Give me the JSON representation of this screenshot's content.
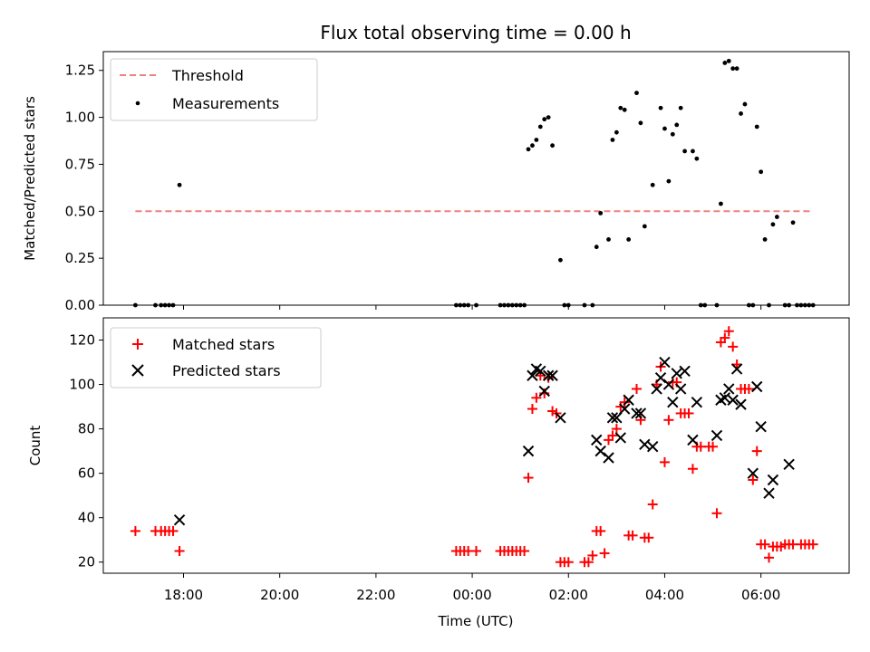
{
  "chart_data": [
    {
      "type": "scatter",
      "title": "Flux total observing time = 0.00 h",
      "ylabel": "Matched/Predicted stars",
      "xlabel": "",
      "ylim": [
        0,
        1.35
      ],
      "yticks": [
        0.0,
        0.25,
        0.5,
        0.75,
        1.0,
        1.25
      ],
      "ytick_labels": [
        "0.00",
        "0.25",
        "0.50",
        "0.75",
        "1.00",
        "1.25"
      ],
      "threshold": {
        "name": "Threshold",
        "value": 0.5,
        "x_range": [
          "17:00",
          "07:05"
        ],
        "color": "#f08080"
      },
      "legend": {
        "position": "upper left",
        "entries": [
          "Threshold",
          "Measurements"
        ]
      },
      "series": [
        {
          "name": "Measurements",
          "marker": "dot",
          "color": "#000000",
          "points": [
            [
              "17:00",
              0
            ],
            [
              "17:25",
              0
            ],
            [
              "17:32",
              0
            ],
            [
              "17:37",
              0
            ],
            [
              "17:42",
              0
            ],
            [
              "17:47",
              0
            ],
            [
              "17:55",
              0.64
            ],
            [
              "23:40",
              0
            ],
            [
              "23:45",
              0
            ],
            [
              "23:50",
              0
            ],
            [
              "23:55",
              0
            ],
            [
              "00:05",
              0
            ],
            [
              "00:35",
              0
            ],
            [
              "00:40",
              0
            ],
            [
              "00:45",
              0
            ],
            [
              "00:50",
              0
            ],
            [
              "00:55",
              0
            ],
            [
              "01:00",
              0
            ],
            [
              "01:05",
              0
            ],
            [
              "01:10",
              0.83
            ],
            [
              "01:15",
              0.85
            ],
            [
              "01:20",
              0.88
            ],
            [
              "01:25",
              0.95
            ],
            [
              "01:30",
              0.99
            ],
            [
              "01:35",
              1.0
            ],
            [
              "01:40",
              0.85
            ],
            [
              "01:50",
              0.24
            ],
            [
              "01:55",
              0
            ],
            [
              "02:00",
              0
            ],
            [
              "02:20",
              0
            ],
            [
              "02:30",
              0
            ],
            [
              "02:35",
              0.31
            ],
            [
              "02:40",
              0.49
            ],
            [
              "02:50",
              0.35
            ],
            [
              "02:55",
              0.88
            ],
            [
              "03:00",
              0.92
            ],
            [
              "03:05",
              1.05
            ],
            [
              "03:10",
              1.04
            ],
            [
              "03:15",
              0.35
            ],
            [
              "03:25",
              1.13
            ],
            [
              "03:30",
              0.97
            ],
            [
              "03:35",
              0.42
            ],
            [
              "03:45",
              0.64
            ],
            [
              "03:55",
              1.05
            ],
            [
              "04:00",
              0.94
            ],
            [
              "04:05",
              0.66
            ],
            [
              "04:10",
              0.91
            ],
            [
              "04:15",
              0.96
            ],
            [
              "04:20",
              1.05
            ],
            [
              "04:25",
              0.82
            ],
            [
              "04:35",
              0.82
            ],
            [
              "04:40",
              0.78
            ],
            [
              "04:45",
              0
            ],
            [
              "04:50",
              0
            ],
            [
              "05:05",
              0
            ],
            [
              "05:10",
              0.54
            ],
            [
              "05:15",
              1.29
            ],
            [
              "05:20",
              1.3
            ],
            [
              "05:25",
              1.26
            ],
            [
              "05:30",
              1.26
            ],
            [
              "05:35",
              1.02
            ],
            [
              "05:40",
              1.07
            ],
            [
              "05:45",
              0
            ],
            [
              "05:50",
              0
            ],
            [
              "05:55",
              0.95
            ],
            [
              "06:00",
              0.71
            ],
            [
              "06:05",
              0.35
            ],
            [
              "06:10",
              0
            ],
            [
              "06:15",
              0.43
            ],
            [
              "06:20",
              0.47
            ],
            [
              "06:30",
              0
            ],
            [
              "06:35",
              0
            ],
            [
              "06:40",
              0.44
            ],
            [
              "06:45",
              0
            ],
            [
              "06:50",
              0
            ],
            [
              "06:55",
              0
            ],
            [
              "07:00",
              0
            ],
            [
              "07:05",
              0
            ]
          ]
        }
      ]
    },
    {
      "type": "scatter",
      "title": "",
      "xlabel": "Time (UTC)",
      "ylabel": "Count",
      "ylim": [
        15,
        130
      ],
      "yticks": [
        20,
        40,
        60,
        80,
        100,
        120
      ],
      "ytick_labels": [
        "20",
        "40",
        "60",
        "80",
        "100",
        "120"
      ],
      "xlim": [
        "16:20",
        "07:50"
      ],
      "xticks": [
        "18:00",
        "20:00",
        "22:00",
        "00:00",
        "02:00",
        "04:00",
        "06:00"
      ],
      "legend": {
        "position": "upper left",
        "entries": [
          "Matched stars",
          "Predicted stars"
        ]
      },
      "series": [
        {
          "name": "Matched stars",
          "marker": "plus",
          "color": "#ff0000",
          "points": [
            [
              "17:00",
              34
            ],
            [
              "17:25",
              34
            ],
            [
              "17:32",
              34
            ],
            [
              "17:37",
              34
            ],
            [
              "17:42",
              34
            ],
            [
              "17:47",
              34
            ],
            [
              "17:55",
              25
            ],
            [
              "23:40",
              25
            ],
            [
              "23:45",
              25
            ],
            [
              "23:50",
              25
            ],
            [
              "23:55",
              25
            ],
            [
              "00:05",
              25
            ],
            [
              "00:35",
              25
            ],
            [
              "00:40",
              25
            ],
            [
              "00:45",
              25
            ],
            [
              "00:50",
              25
            ],
            [
              "00:55",
              25
            ],
            [
              "01:00",
              25
            ],
            [
              "01:05",
              25
            ],
            [
              "01:10",
              58
            ],
            [
              "01:15",
              89
            ],
            [
              "01:20",
              94
            ],
            [
              "01:25",
              104
            ],
            [
              "01:30",
              96
            ],
            [
              "01:35",
              103
            ],
            [
              "01:40",
              88
            ],
            [
              "01:45",
              87
            ],
            [
              "01:50",
              20
            ],
            [
              "01:55",
              20
            ],
            [
              "02:00",
              20
            ],
            [
              "02:20",
              20
            ],
            [
              "02:25",
              20
            ],
            [
              "02:30",
              23
            ],
            [
              "02:35",
              34
            ],
            [
              "02:40",
              34
            ],
            [
              "02:45",
              24
            ],
            [
              "02:50",
              75
            ],
            [
              "02:55",
              77
            ],
            [
              "03:00",
              80
            ],
            [
              "03:05",
              90
            ],
            [
              "03:10",
              92
            ],
            [
              "03:15",
              32
            ],
            [
              "03:20",
              32
            ],
            [
              "03:25",
              98
            ],
            [
              "03:30",
              84
            ],
            [
              "03:35",
              31
            ],
            [
              "03:40",
              31
            ],
            [
              "03:45",
              46
            ],
            [
              "03:50",
              100
            ],
            [
              "03:55",
              108
            ],
            [
              "04:00",
              65
            ],
            [
              "04:05",
              84
            ],
            [
              "04:10",
              101
            ],
            [
              "04:15",
              101
            ],
            [
              "04:20",
              87
            ],
            [
              "04:25",
              87
            ],
            [
              "04:30",
              87
            ],
            [
              "04:35",
              62
            ],
            [
              "04:40",
              72
            ],
            [
              "04:45",
              72
            ],
            [
              "04:55",
              72
            ],
            [
              "05:00",
              72
            ],
            [
              "05:05",
              42
            ],
            [
              "05:10",
              119
            ],
            [
              "05:15",
              121
            ],
            [
              "05:20",
              124
            ],
            [
              "05:25",
              117
            ],
            [
              "05:30",
              109
            ],
            [
              "05:35",
              98
            ],
            [
              "05:40",
              98
            ],
            [
              "05:45",
              98
            ],
            [
              "05:50",
              57
            ],
            [
              "05:55",
              70
            ],
            [
              "06:00",
              28
            ],
            [
              "06:05",
              28
            ],
            [
              "06:10",
              22
            ],
            [
              "06:15",
              27
            ],
            [
              "06:20",
              27
            ],
            [
              "06:25",
              27
            ],
            [
              "06:30",
              28
            ],
            [
              "06:35",
              28
            ],
            [
              "06:40",
              28
            ],
            [
              "06:50",
              28
            ],
            [
              "06:55",
              28
            ],
            [
              "07:00",
              28
            ],
            [
              "07:05",
              28
            ]
          ]
        },
        {
          "name": "Predicted stars",
          "marker": "x",
          "color": "#000000",
          "points": [
            [
              "17:55",
              39
            ],
            [
              "01:10",
              70
            ],
            [
              "01:15",
              104
            ],
            [
              "01:20",
              107
            ],
            [
              "01:25",
              106
            ],
            [
              "01:30",
              97
            ],
            [
              "01:35",
              104
            ],
            [
              "01:40",
              104
            ],
            [
              "01:50",
              85
            ],
            [
              "02:35",
              75
            ],
            [
              "02:40",
              70
            ],
            [
              "02:50",
              67
            ],
            [
              "02:55",
              85
            ],
            [
              "03:00",
              85
            ],
            [
              "03:05",
              76
            ],
            [
              "03:10",
              89
            ],
            [
              "03:15",
              93
            ],
            [
              "03:25",
              87
            ],
            [
              "03:30",
              87
            ],
            [
              "03:35",
              73
            ],
            [
              "03:45",
              72
            ],
            [
              "03:50",
              98
            ],
            [
              "03:55",
              103
            ],
            [
              "04:00",
              110
            ],
            [
              "04:05",
              100
            ],
            [
              "04:10",
              92
            ],
            [
              "04:15",
              105
            ],
            [
              "04:20",
              98
            ],
            [
              "04:25",
              106
            ],
            [
              "04:35",
              75
            ],
            [
              "04:40",
              92
            ],
            [
              "05:05",
              77
            ],
            [
              "05:10",
              93
            ],
            [
              "05:15",
              94
            ],
            [
              "05:20",
              98
            ],
            [
              "05:25",
              93
            ],
            [
              "05:30",
              107
            ],
            [
              "05:35",
              91
            ],
            [
              "05:50",
              60
            ],
            [
              "05:55",
              99
            ],
            [
              "06:00",
              81
            ],
            [
              "06:10",
              51
            ],
            [
              "06:15",
              57
            ],
            [
              "06:35",
              64
            ]
          ]
        }
      ]
    }
  ]
}
